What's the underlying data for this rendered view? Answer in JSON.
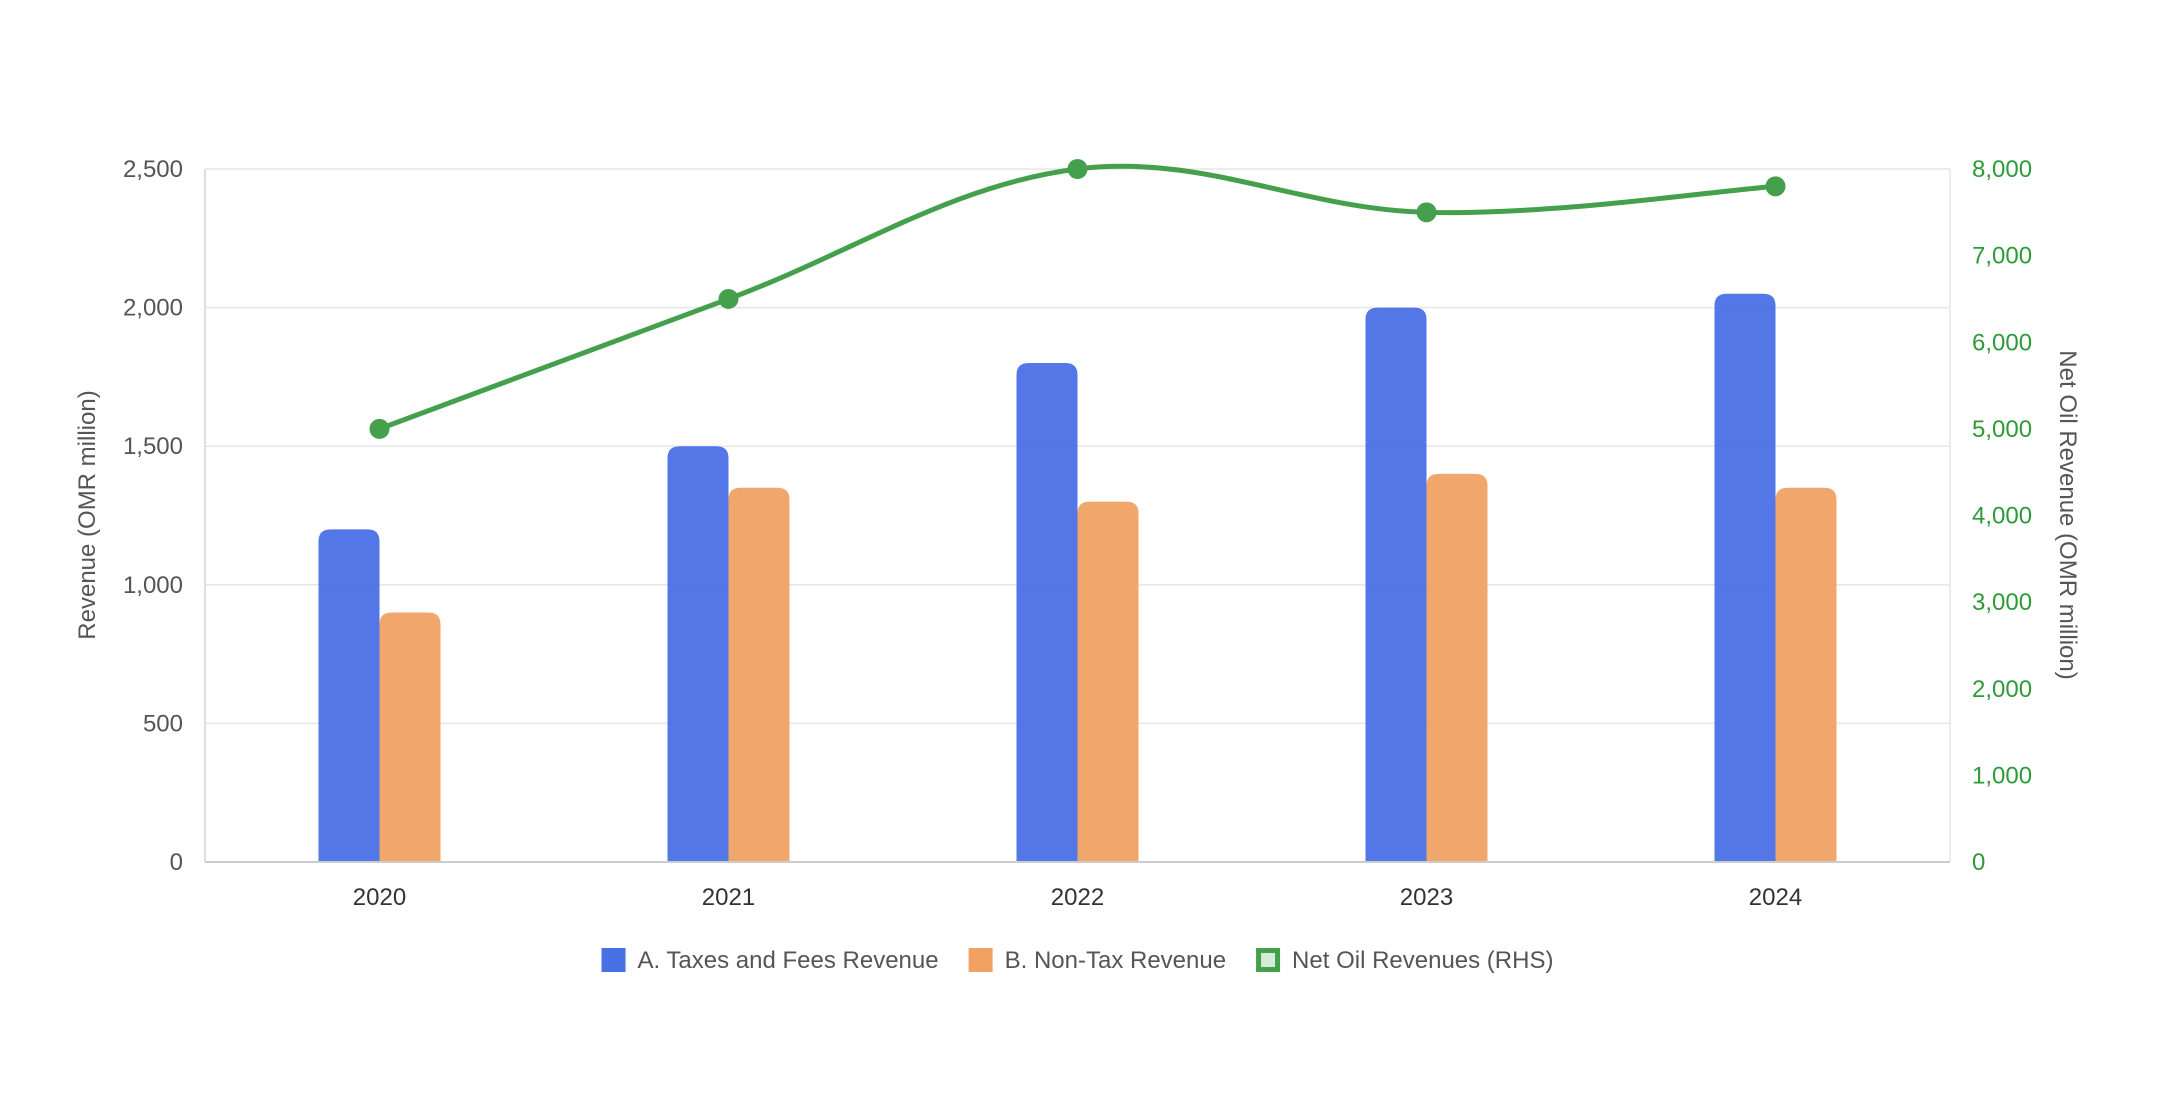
{
  "chart_data": {
    "type": "bar",
    "categories": [
      "2020",
      "2021",
      "2022",
      "2023",
      "2024"
    ],
    "series": [
      {
        "name": "A. Taxes and Fees Revenue",
        "type": "bar",
        "axis": "left",
        "color": "#4a70e6",
        "values": [
          1200,
          1500,
          1800,
          2000,
          2050
        ]
      },
      {
        "name": "B. Non-Tax Revenue",
        "type": "bar",
        "axis": "left",
        "color": "#f0a264",
        "values": [
          900,
          1350,
          1300,
          1400,
          1350
        ]
      },
      {
        "name": "Net Oil Revenues (RHS)",
        "type": "line",
        "axis": "right",
        "color": "#44a04c",
        "values": [
          5000,
          6500,
          8000,
          7500,
          7800
        ]
      }
    ],
    "ylabel": "Revenue (OMR million)",
    "y2label": "Net Oil Revenue (OMR million)",
    "ylim": [
      0,
      2500
    ],
    "y2lim": [
      0,
      8000
    ],
    "yticks": [
      "0",
      "500",
      "1,000",
      "1,500",
      "2,000",
      "2,500"
    ],
    "y2ticks": [
      "0",
      "1,000",
      "2,000",
      "3,000",
      "4,000",
      "5,000",
      "6,000",
      "7,000",
      "8,000"
    ],
    "grid": true,
    "legend": "bottom"
  }
}
